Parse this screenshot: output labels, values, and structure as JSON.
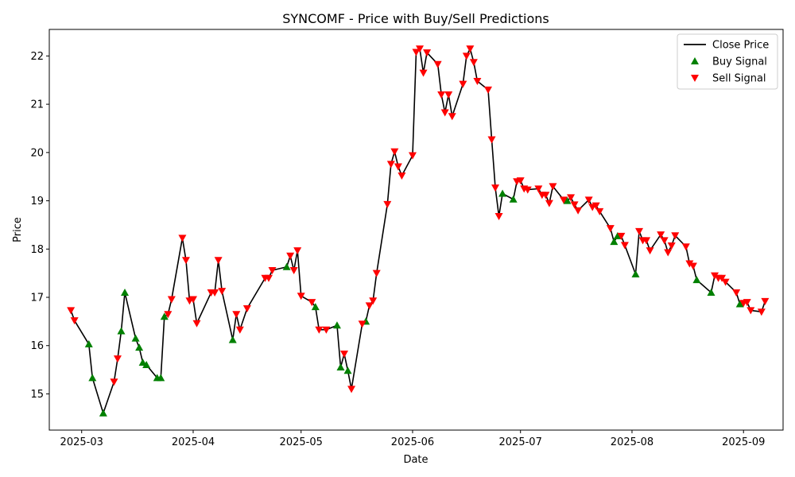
{
  "chart_data": {
    "type": "line",
    "title": "SYNCOMF - Price with Buy/Sell Predictions",
    "xlabel": "Date",
    "ylabel": "Price",
    "xlim": [
      "2025-02-20",
      "2025-09-12"
    ],
    "ylim": [
      14.25,
      22.55
    ],
    "x_ticks": [
      "2025-03-01",
      "2025-04-01",
      "2025-05-01",
      "2025-06-01",
      "2025-07-01",
      "2025-08-01",
      "2025-09-01"
    ],
    "x_tick_labels": [
      "2025-03",
      "2025-04",
      "2025-05",
      "2025-06",
      "2025-07",
      "2025-08",
      "2025-09"
    ],
    "y_ticks": [
      15,
      16,
      17,
      18,
      19,
      20,
      21,
      22
    ],
    "grid": false,
    "legend": {
      "position": "top-right",
      "entries": [
        {
          "label": "Close Price",
          "kind": "line",
          "color": "#000000"
        },
        {
          "label": "Buy Signal",
          "kind": "marker-up",
          "color": "#008000"
        },
        {
          "label": "Sell Signal",
          "kind": "marker-down",
          "color": "#ff0000"
        }
      ]
    },
    "colors": {
      "line": "#000000",
      "buy": "#008000",
      "sell": "#ff0000"
    },
    "series": [
      {
        "name": "Close Price",
        "points": [
          [
            "2025-02-26",
            16.73
          ],
          [
            "2025-02-27",
            16.52
          ],
          [
            "2025-03-03",
            16.03
          ],
          [
            "2025-03-04",
            15.33
          ],
          [
            "2025-03-07",
            14.6
          ],
          [
            "2025-03-10",
            15.25
          ],
          [
            "2025-03-11",
            15.73
          ],
          [
            "2025-03-12",
            16.3
          ],
          [
            "2025-03-13",
            17.1
          ],
          [
            "2025-03-16",
            16.15
          ],
          [
            "2025-03-17",
            15.96
          ],
          [
            "2025-03-18",
            15.65
          ],
          [
            "2025-03-19",
            15.6
          ],
          [
            "2025-03-22",
            15.33
          ],
          [
            "2025-03-23",
            15.33
          ],
          [
            "2025-03-24",
            16.6
          ],
          [
            "2025-03-25",
            16.65
          ],
          [
            "2025-03-26",
            16.96
          ],
          [
            "2025-03-29",
            18.23
          ],
          [
            "2025-03-30",
            17.77
          ],
          [
            "2025-03-31",
            16.93
          ],
          [
            "2025-04-01",
            16.96
          ],
          [
            "2025-04-02",
            16.46
          ],
          [
            "2025-04-06",
            17.1
          ],
          [
            "2025-04-07",
            17.1
          ],
          [
            "2025-04-08",
            17.77
          ],
          [
            "2025-04-09",
            17.13
          ],
          [
            "2025-04-12",
            16.12
          ],
          [
            "2025-04-13",
            16.65
          ],
          [
            "2025-04-14",
            16.33
          ],
          [
            "2025-04-16",
            16.77
          ],
          [
            "2025-04-21",
            17.4
          ],
          [
            "2025-04-22",
            17.4
          ],
          [
            "2025-04-23",
            17.56
          ],
          [
            "2025-04-27",
            17.63
          ],
          [
            "2025-04-28",
            17.86
          ],
          [
            "2025-04-29",
            17.56
          ],
          [
            "2025-04-30",
            17.97
          ],
          [
            "2025-05-01",
            17.03
          ],
          [
            "2025-05-04",
            16.9
          ],
          [
            "2025-05-05",
            16.8
          ],
          [
            "2025-05-06",
            16.33
          ],
          [
            "2025-05-08",
            16.33
          ],
          [
            "2025-05-11",
            16.42
          ],
          [
            "2025-05-12",
            15.55
          ],
          [
            "2025-05-13",
            15.83
          ],
          [
            "2025-05-14",
            15.48
          ],
          [
            "2025-05-15",
            15.1
          ],
          [
            "2025-05-18",
            16.45
          ],
          [
            "2025-05-19",
            16.5
          ],
          [
            "2025-05-20",
            16.83
          ],
          [
            "2025-05-21",
            16.93
          ],
          [
            "2025-05-22",
            17.5
          ],
          [
            "2025-05-25",
            18.93
          ],
          [
            "2025-05-26",
            19.76
          ],
          [
            "2025-05-27",
            20.02
          ],
          [
            "2025-05-28",
            19.71
          ],
          [
            "2025-05-29",
            19.52
          ],
          [
            "2025-06-01",
            19.94
          ],
          [
            "2025-06-02",
            22.08
          ],
          [
            "2025-06-03",
            22.15
          ],
          [
            "2025-06-04",
            21.65
          ],
          [
            "2025-06-05",
            22.07
          ],
          [
            "2025-06-08",
            21.83
          ],
          [
            "2025-06-09",
            21.2
          ],
          [
            "2025-06-10",
            20.83
          ],
          [
            "2025-06-11",
            21.2
          ],
          [
            "2025-06-12",
            20.75
          ],
          [
            "2025-06-15",
            21.42
          ],
          [
            "2025-06-16",
            22.0
          ],
          [
            "2025-06-17",
            22.15
          ],
          [
            "2025-06-18",
            21.87
          ],
          [
            "2025-06-19",
            21.48
          ],
          [
            "2025-06-22",
            21.3
          ],
          [
            "2025-06-23",
            20.27
          ],
          [
            "2025-06-24",
            19.27
          ],
          [
            "2025-06-25",
            18.68
          ],
          [
            "2025-06-26",
            19.15
          ],
          [
            "2025-06-29",
            19.03
          ],
          [
            "2025-06-30",
            19.4
          ],
          [
            "2025-07-01",
            19.42
          ],
          [
            "2025-07-02",
            19.25
          ],
          [
            "2025-07-03",
            19.23
          ],
          [
            "2025-07-06",
            19.25
          ],
          [
            "2025-07-07",
            19.12
          ],
          [
            "2025-07-08",
            19.12
          ],
          [
            "2025-07-09",
            18.95
          ],
          [
            "2025-07-10",
            19.3
          ],
          [
            "2025-07-13",
            19.02
          ],
          [
            "2025-07-14",
            19.0
          ],
          [
            "2025-07-15",
            19.07
          ],
          [
            "2025-07-16",
            18.92
          ],
          [
            "2025-07-17",
            18.8
          ],
          [
            "2025-07-20",
            19.02
          ],
          [
            "2025-07-21",
            18.87
          ],
          [
            "2025-07-22",
            18.9
          ],
          [
            "2025-07-23",
            18.78
          ],
          [
            "2025-07-26",
            18.43
          ],
          [
            "2025-07-27",
            18.15
          ],
          [
            "2025-07-28",
            18.27
          ],
          [
            "2025-07-29",
            18.27
          ],
          [
            "2025-07-30",
            18.08
          ],
          [
            "2025-08-02",
            17.48
          ],
          [
            "2025-08-03",
            18.37
          ],
          [
            "2025-08-04",
            18.18
          ],
          [
            "2025-08-05",
            18.18
          ],
          [
            "2025-08-06",
            17.97
          ],
          [
            "2025-08-09",
            18.3
          ],
          [
            "2025-08-10",
            18.18
          ],
          [
            "2025-08-11",
            17.93
          ],
          [
            "2025-08-12",
            18.07
          ],
          [
            "2025-08-13",
            18.28
          ],
          [
            "2025-08-16",
            18.05
          ],
          [
            "2025-08-17",
            17.7
          ],
          [
            "2025-08-18",
            17.65
          ],
          [
            "2025-08-19",
            17.36
          ],
          [
            "2025-08-23",
            17.1
          ],
          [
            "2025-08-24",
            17.45
          ],
          [
            "2025-08-25",
            17.4
          ],
          [
            "2025-08-26",
            17.4
          ],
          [
            "2025-08-27",
            17.32
          ],
          [
            "2025-08-30",
            17.1
          ],
          [
            "2025-08-31",
            16.86
          ],
          [
            "2025-09-01",
            16.88
          ],
          [
            "2025-09-02",
            16.9
          ],
          [
            "2025-09-03",
            16.73
          ],
          [
            "2025-09-06",
            16.7
          ],
          [
            "2025-09-07",
            16.92
          ]
        ]
      },
      {
        "name": "Buy Signal",
        "points": [
          [
            "2025-03-03",
            16.03
          ],
          [
            "2025-03-04",
            15.33
          ],
          [
            "2025-03-07",
            14.6
          ],
          [
            "2025-03-12",
            16.3
          ],
          [
            "2025-03-13",
            17.1
          ],
          [
            "2025-03-16",
            16.15
          ],
          [
            "2025-03-17",
            15.96
          ],
          [
            "2025-03-18",
            15.65
          ],
          [
            "2025-03-19",
            15.6
          ],
          [
            "2025-03-22",
            15.33
          ],
          [
            "2025-03-23",
            15.33
          ],
          [
            "2025-03-24",
            16.6
          ],
          [
            "2025-04-12",
            16.12
          ],
          [
            "2025-04-27",
            17.63
          ],
          [
            "2025-05-05",
            16.8
          ],
          [
            "2025-05-11",
            16.42
          ],
          [
            "2025-05-12",
            15.55
          ],
          [
            "2025-05-14",
            15.48
          ],
          [
            "2025-05-19",
            16.5
          ],
          [
            "2025-06-26",
            19.15
          ],
          [
            "2025-06-29",
            19.03
          ],
          [
            "2025-07-14",
            19.0
          ],
          [
            "2025-07-27",
            18.15
          ],
          [
            "2025-07-28",
            18.27
          ],
          [
            "2025-08-02",
            17.48
          ],
          [
            "2025-08-19",
            17.36
          ],
          [
            "2025-08-23",
            17.1
          ],
          [
            "2025-08-31",
            16.86
          ]
        ]
      },
      {
        "name": "Sell Signal",
        "points": [
          [
            "2025-02-26",
            16.73
          ],
          [
            "2025-02-27",
            16.52
          ],
          [
            "2025-03-10",
            15.25
          ],
          [
            "2025-03-11",
            15.73
          ],
          [
            "2025-03-25",
            16.65
          ],
          [
            "2025-03-26",
            16.96
          ],
          [
            "2025-03-29",
            18.23
          ],
          [
            "2025-03-30",
            17.77
          ],
          [
            "2025-03-31",
            16.93
          ],
          [
            "2025-04-01",
            16.96
          ],
          [
            "2025-04-02",
            16.46
          ],
          [
            "2025-04-06",
            17.1
          ],
          [
            "2025-04-07",
            17.1
          ],
          [
            "2025-04-08",
            17.77
          ],
          [
            "2025-04-09",
            17.13
          ],
          [
            "2025-04-13",
            16.65
          ],
          [
            "2025-04-14",
            16.33
          ],
          [
            "2025-04-16",
            16.77
          ],
          [
            "2025-04-21",
            17.4
          ],
          [
            "2025-04-22",
            17.4
          ],
          [
            "2025-04-23",
            17.56
          ],
          [
            "2025-04-28",
            17.86
          ],
          [
            "2025-04-29",
            17.56
          ],
          [
            "2025-04-30",
            17.97
          ],
          [
            "2025-05-01",
            17.03
          ],
          [
            "2025-05-04",
            16.9
          ],
          [
            "2025-05-06",
            16.33
          ],
          [
            "2025-05-08",
            16.33
          ],
          [
            "2025-05-13",
            15.83
          ],
          [
            "2025-05-15",
            15.1
          ],
          [
            "2025-05-18",
            16.45
          ],
          [
            "2025-05-20",
            16.83
          ],
          [
            "2025-05-21",
            16.93
          ],
          [
            "2025-05-22",
            17.5
          ],
          [
            "2025-05-25",
            18.93
          ],
          [
            "2025-05-26",
            19.76
          ],
          [
            "2025-05-27",
            20.02
          ],
          [
            "2025-05-28",
            19.71
          ],
          [
            "2025-05-29",
            19.52
          ],
          [
            "2025-06-01",
            19.94
          ],
          [
            "2025-06-02",
            22.08
          ],
          [
            "2025-06-03",
            22.15
          ],
          [
            "2025-06-04",
            21.65
          ],
          [
            "2025-06-05",
            22.07
          ],
          [
            "2025-06-08",
            21.83
          ],
          [
            "2025-06-09",
            21.2
          ],
          [
            "2025-06-10",
            20.83
          ],
          [
            "2025-06-11",
            21.2
          ],
          [
            "2025-06-12",
            20.75
          ],
          [
            "2025-06-15",
            21.42
          ],
          [
            "2025-06-16",
            22.0
          ],
          [
            "2025-06-17",
            22.15
          ],
          [
            "2025-06-18",
            21.87
          ],
          [
            "2025-06-19",
            21.48
          ],
          [
            "2025-06-22",
            21.3
          ],
          [
            "2025-06-23",
            20.27
          ],
          [
            "2025-06-24",
            19.27
          ],
          [
            "2025-06-25",
            18.68
          ],
          [
            "2025-06-30",
            19.4
          ],
          [
            "2025-07-01",
            19.42
          ],
          [
            "2025-07-02",
            19.25
          ],
          [
            "2025-07-03",
            19.23
          ],
          [
            "2025-07-06",
            19.25
          ],
          [
            "2025-07-07",
            19.12
          ],
          [
            "2025-07-08",
            19.12
          ],
          [
            "2025-07-09",
            18.95
          ],
          [
            "2025-07-10",
            19.3
          ],
          [
            "2025-07-13",
            19.02
          ],
          [
            "2025-07-15",
            19.07
          ],
          [
            "2025-07-16",
            18.92
          ],
          [
            "2025-07-17",
            18.8
          ],
          [
            "2025-07-20",
            19.02
          ],
          [
            "2025-07-21",
            18.87
          ],
          [
            "2025-07-22",
            18.9
          ],
          [
            "2025-07-23",
            18.78
          ],
          [
            "2025-07-26",
            18.43
          ],
          [
            "2025-07-29",
            18.27
          ],
          [
            "2025-07-30",
            18.08
          ],
          [
            "2025-08-03",
            18.37
          ],
          [
            "2025-08-04",
            18.18
          ],
          [
            "2025-08-05",
            18.18
          ],
          [
            "2025-08-06",
            17.97
          ],
          [
            "2025-08-09",
            18.3
          ],
          [
            "2025-08-10",
            18.18
          ],
          [
            "2025-08-11",
            17.93
          ],
          [
            "2025-08-12",
            18.07
          ],
          [
            "2025-08-13",
            18.28
          ],
          [
            "2025-08-16",
            18.05
          ],
          [
            "2025-08-17",
            17.7
          ],
          [
            "2025-08-18",
            17.65
          ],
          [
            "2025-08-24",
            17.45
          ],
          [
            "2025-08-25",
            17.4
          ],
          [
            "2025-08-26",
            17.4
          ],
          [
            "2025-08-27",
            17.32
          ],
          [
            "2025-08-30",
            17.1
          ],
          [
            "2025-09-01",
            16.88
          ],
          [
            "2025-09-02",
            16.9
          ],
          [
            "2025-09-03",
            16.73
          ],
          [
            "2025-09-06",
            16.7
          ],
          [
            "2025-09-07",
            16.92
          ]
        ]
      }
    ]
  }
}
